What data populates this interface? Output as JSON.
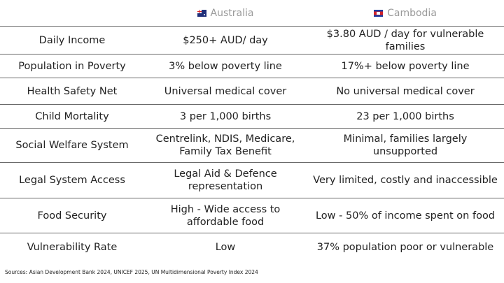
{
  "header": {
    "col1": "Australia",
    "col2": "Cambodia"
  },
  "rows": [
    {
      "label": "Daily Income",
      "australia": "$250+ AUD/ day",
      "cambodia": "$3.80 AUD / day for vulnerable families"
    },
    {
      "label": "Population in Poverty",
      "australia": "3% below poverty line",
      "cambodia": "17%+ below poverty line"
    },
    {
      "label": "Health Safety Net",
      "australia": "Universal medical cover",
      "cambodia": "No universal medical cover"
    },
    {
      "label": "Child Mortality",
      "australia": "3 per 1,000 births",
      "cambodia": "23 per 1,000 births"
    },
    {
      "label": "Social Welfare System",
      "australia": "Centrelink, NDIS, Medicare, Family  Tax Benefit",
      "cambodia": "Minimal, families largely unsupported"
    },
    {
      "label": "Legal System Access",
      "australia": "Legal Aid & Defence representation",
      "cambodia": "Very limited, costly and inaccessible"
    },
    {
      "label": "Food Security",
      "australia": "High - Wide access to affordable food",
      "cambodia": "Low - 50% of income spent on food"
    },
    {
      "label": "Vulnerability Rate",
      "australia": "Low",
      "cambodia": "37% population poor or vulnerable"
    }
  ],
  "sources": "Sources: Asian Development Bank 2024, UNICEF 2025, UN Multidimensional Poverty Index 2024"
}
